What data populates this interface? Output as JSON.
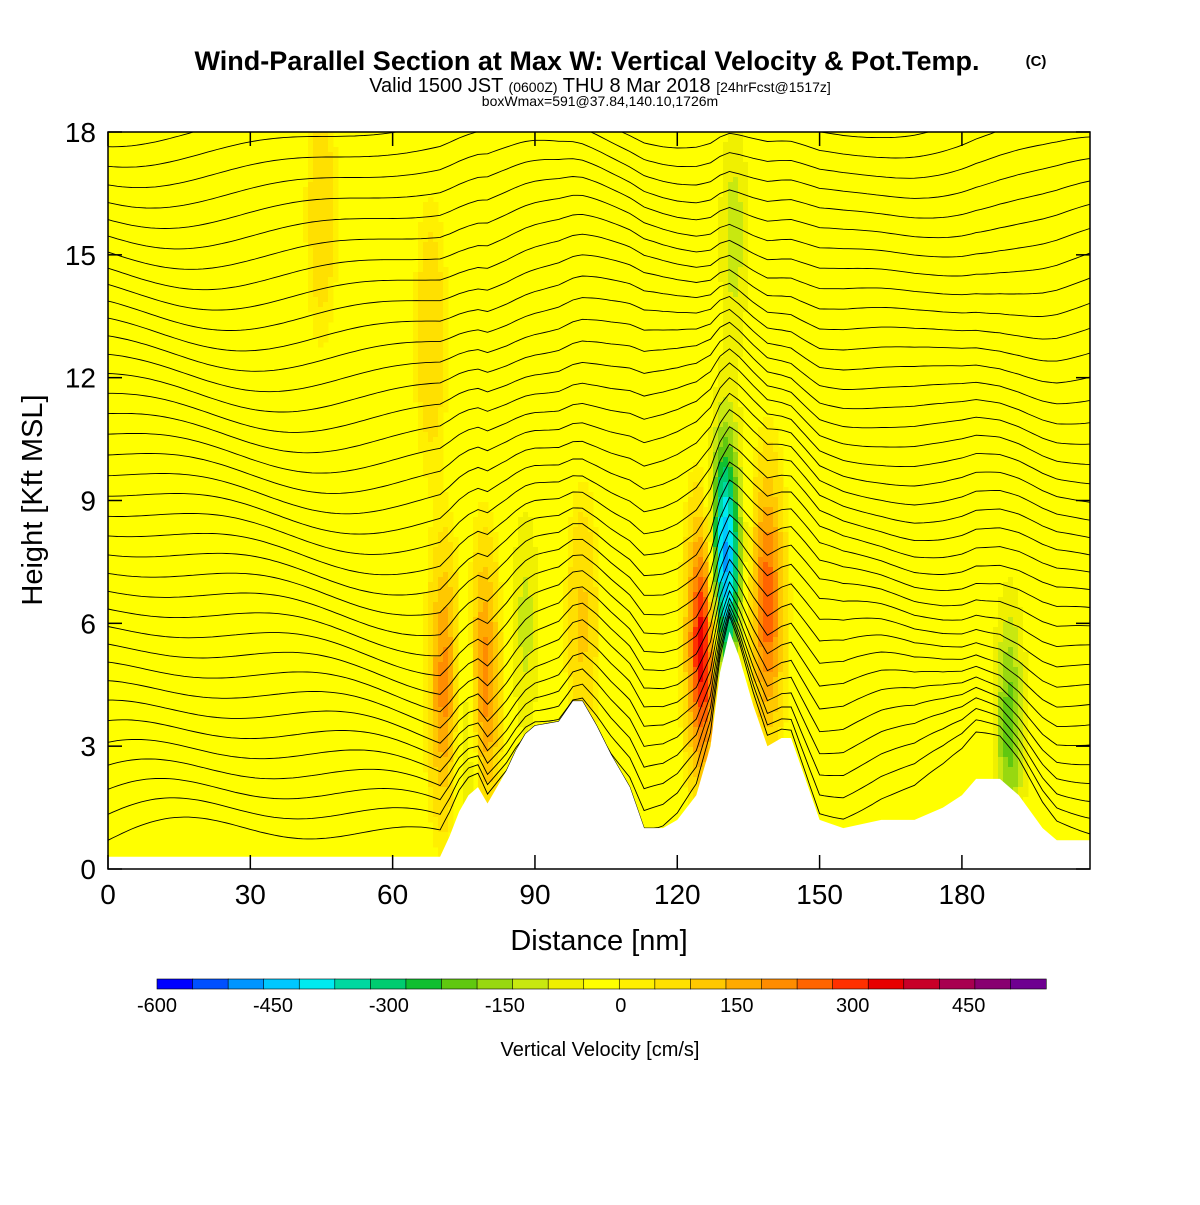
{
  "header": {
    "title_main": "Wind-Parallel Section at Max W: Vertical Velocity & Pot.Temp.",
    "title_mark": "(C)",
    "valid_a": "Valid 1500 JST",
    "valid_b": "(0600Z)",
    "valid_c": "THU 8 Mar 2018",
    "valid_d": "[24hrFcst@1517z]",
    "box_info": "boxWmax=591@37.84,140.10,1726m"
  },
  "chart_data": {
    "type": "heatmap",
    "subtype": "vertical cross-section with potential temperature contours",
    "xlabel": "Distance [nm]",
    "ylabel": "Height [Kft MSL]",
    "xlim": [
      0,
      207
    ],
    "ylim": [
      0,
      18
    ],
    "x_ticks": [
      0,
      30,
      60,
      90,
      120,
      150,
      180
    ],
    "y_ticks": [
      0,
      3,
      6,
      9,
      12,
      15,
      18
    ],
    "terrain_kft": [
      [
        0,
        0.3
      ],
      [
        68,
        0.3
      ],
      [
        70,
        0.3
      ],
      [
        72,
        0.8
      ],
      [
        74,
        1.4
      ],
      [
        76,
        1.8
      ],
      [
        78,
        2.0
      ],
      [
        80,
        1.6
      ],
      [
        82,
        2.0
      ],
      [
        84,
        2.4
      ],
      [
        86,
        2.9
      ],
      [
        88,
        3.3
      ],
      [
        90,
        3.5
      ],
      [
        95,
        3.6
      ],
      [
        98,
        4.1
      ],
      [
        100,
        4.1
      ],
      [
        103,
        3.5
      ],
      [
        106,
        2.8
      ],
      [
        110,
        2.0
      ],
      [
        113,
        1.0
      ],
      [
        117,
        1.0
      ],
      [
        120,
        1.2
      ],
      [
        124,
        1.8
      ],
      [
        127,
        3.0
      ],
      [
        129,
        4.8
      ],
      [
        131,
        5.8
      ],
      [
        133,
        5.2
      ],
      [
        136,
        4.0
      ],
      [
        139,
        3.0
      ],
      [
        142,
        3.2
      ],
      [
        144,
        3.2
      ],
      [
        147,
        2.2
      ],
      [
        150,
        1.2
      ],
      [
        155,
        1.0
      ],
      [
        163,
        1.2
      ],
      [
        170,
        1.2
      ],
      [
        176,
        1.5
      ],
      [
        180,
        1.8
      ],
      [
        183,
        2.2
      ],
      [
        188,
        2.2
      ],
      [
        192,
        1.8
      ],
      [
        197,
        1.0
      ],
      [
        200,
        0.7
      ],
      [
        207,
        0.7
      ]
    ],
    "w_features_cms": [
      {
        "x": 71,
        "z": 4.5,
        "w": 210
      },
      {
        "x": 79,
        "z": 4.5,
        "w": 250
      },
      {
        "x": 76,
        "z": 3.5,
        "w": -160
      },
      {
        "x": 88,
        "z": 6.0,
        "w": -110
      },
      {
        "x": 100,
        "z": 6.0,
        "w": 100
      },
      {
        "x": 125.5,
        "z": 5.5,
        "w": 380
      },
      {
        "x": 130,
        "z": 7.5,
        "w": -500
      },
      {
        "x": 139,
        "z": 6.5,
        "w": 260
      },
      {
        "x": 132,
        "z": 15.5,
        "w": -120
      },
      {
        "x": 190,
        "z": 3.5,
        "w": -210
      },
      {
        "x": 68,
        "z": 13.0,
        "w": 90
      },
      {
        "x": 45,
        "z": 16.0,
        "w": 80
      }
    ],
    "colorbar": {
      "label": "Vertical Velocity [cm/s]",
      "tick_labels": [
        "-600",
        "-450",
        "-300",
        "-150",
        "0",
        "150",
        "300",
        "450"
      ],
      "tick_values": [
        -600,
        -450,
        -300,
        -150,
        0,
        150,
        300,
        450
      ],
      "range": [
        -600,
        550
      ],
      "colors": [
        "#0000ff",
        "#0050ff",
        "#0095ff",
        "#00c8ff",
        "#00eaf0",
        "#00d8a0",
        "#00cc70",
        "#10bf30",
        "#60c810",
        "#98d810",
        "#c8e810",
        "#f0f000",
        "#ffff00",
        "#fff000",
        "#ffe000",
        "#ffc800",
        "#ffaa00",
        "#ff8c00",
        "#ff6400",
        "#ff3000",
        "#e80000",
        "#c80028",
        "#a80050",
        "#880070",
        "#6e0090"
      ]
    },
    "grid": false
  }
}
